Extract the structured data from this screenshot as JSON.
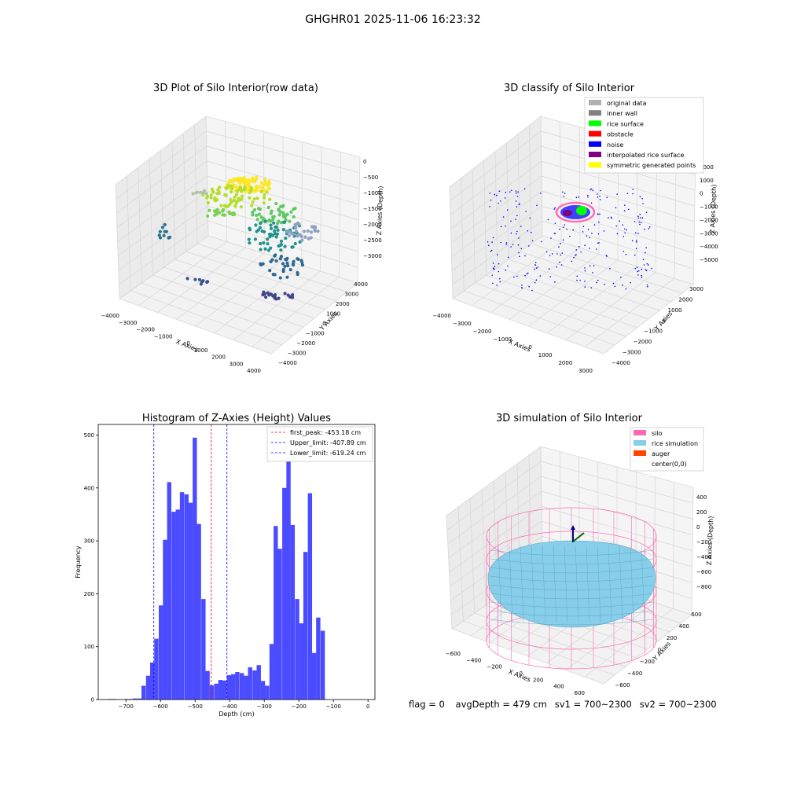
{
  "figure": {
    "suptitle": "GHGHR01 2025-11-06 16:23:32",
    "footer": {
      "flag": "flag = 0",
      "avg_depth": "avgDepth = 479 cm",
      "sv1": "sv1 = 700~2300",
      "sv2": "sv2 = 700~2300"
    }
  },
  "chart_data": [
    {
      "type": "scatter",
      "projection": "3d",
      "title": "3D Plot of Silo Interior(row data)",
      "xlabel": "X Axies",
      "ylabel": "Y Axies",
      "zlabel": "Z Axies (Depth)",
      "xticks": [
        "−4000",
        "−3000",
        "−2000",
        "−1000",
        "0",
        "1000",
        "2000",
        "3000",
        "4000"
      ],
      "yticks": [
        "−4000",
        "−3000",
        "−2000",
        "−1000",
        "0",
        "1000",
        "2000",
        "3000",
        "4000"
      ],
      "zticks": [
        "0",
        "−500",
        "−1000",
        "−1500",
        "−2000",
        "−2500",
        "−3000"
      ],
      "colormap": "viridis",
      "colors": {
        "low": "#440154",
        "mid": "#21918c",
        "high": "#fde725"
      }
    },
    {
      "type": "scatter",
      "projection": "3d",
      "title": "3D classify of Silo Interior",
      "xlabel": "X Axies",
      "ylabel": "Y Axies",
      "zlabel": "Z Axies (Depth)",
      "xticks": [
        "−4000",
        "−3000",
        "−2000",
        "−1000",
        "0",
        "1000",
        "2000",
        "3000"
      ],
      "yticks": [
        "−4000",
        "−3000",
        "−2000",
        "−1000",
        "0",
        "1000",
        "2000",
        "3000"
      ],
      "zticks": [
        "2000",
        "1000",
        "0",
        "−1000",
        "−2000",
        "−3000",
        "−4000",
        "−5000"
      ],
      "legend": [
        {
          "label": "original data",
          "color": "#b0b0b0"
        },
        {
          "label": "inner wall",
          "color": "#808080"
        },
        {
          "label": "rice surface",
          "color": "#00ff00"
        },
        {
          "label": "obstacle",
          "color": "#ff0000"
        },
        {
          "label": "noise",
          "color": "#0000ff"
        },
        {
          "label": "interpolated rice surface",
          "color": "#800080"
        },
        {
          "label": "symmetric generated points",
          "color": "#ffff00"
        }
      ],
      "legend_position": "top-right"
    },
    {
      "type": "bar",
      "title": "Histogram of Z-Axies (Height) Values",
      "xlabel": "Depth (cm)",
      "ylabel": "Frequency",
      "xlim": [
        -780,
        20
      ],
      "ylim": [
        0,
        520
      ],
      "xticks": [
        -700,
        -600,
        -500,
        -400,
        -300,
        -200,
        -100,
        0
      ],
      "yticks": [
        0,
        100,
        200,
        300,
        400,
        500
      ],
      "bin_width": 12.3,
      "bin_start": [
        -753,
        -740,
        -704,
        -691,
        -680,
        -667,
        -655,
        -642,
        -630,
        -618,
        -605,
        -593,
        -581,
        -568,
        -556,
        -544,
        -531,
        -519,
        -507,
        -495,
        -482,
        -470,
        -458,
        -445,
        -433,
        -421,
        -408,
        -396,
        -384,
        -371,
        -359,
        -347,
        -334,
        -322,
        -310,
        -298,
        -285,
        -273,
        -261,
        -248,
        -236,
        -224,
        -211,
        -199,
        -187,
        -174,
        -162,
        -150,
        -137,
        -125,
        -113,
        -101,
        -88,
        -76,
        -64,
        -51,
        -39,
        -27,
        -14
      ],
      "values": [
        1,
        1,
        1,
        1,
        2,
        2,
        26,
        45,
        70,
        115,
        178,
        302,
        411,
        355,
        359,
        392,
        388,
        372,
        495,
        332,
        190,
        54,
        27,
        30,
        37,
        36,
        46,
        48,
        52,
        50,
        45,
        61,
        55,
        65,
        35,
        26,
        105,
        328,
        285,
        400,
        488,
        330,
        190,
        144,
        279,
        390,
        88,
        155,
        130,
        0,
        0,
        0,
        0,
        0,
        0,
        0,
        0,
        0,
        0
      ],
      "bar_color": "#4b4bff",
      "vlines": [
        {
          "label": "first_peak: -453.18 cm",
          "x": -453.18,
          "color": "#ff0000"
        },
        {
          "label": "Upper_limit: -407.89 cm",
          "x": -407.89,
          "color": "#0000ff"
        },
        {
          "label": "Lower_limit: -619.24 cm",
          "x": -619.24,
          "color": "#0000ff"
        }
      ],
      "legend_position": "top-right"
    },
    {
      "type": "surface",
      "projection": "3d",
      "title": "3D simulation of Silo Interior",
      "xlabel": "X Axies",
      "ylabel": "Y Axies",
      "zlabel": "Z Axies (Depth)",
      "xticks": [
        "−600",
        "−400",
        "−200",
        "0",
        "200",
        "400",
        "600"
      ],
      "yticks": [
        "−600",
        "−400",
        "−200",
        "0",
        "200",
        "400",
        "600"
      ],
      "zticks": [
        "400",
        "200",
        "0",
        "−200",
        "−400",
        "−600",
        "−800"
      ],
      "legend": [
        {
          "label": "silo",
          "color": "#ff69b4"
        },
        {
          "label": "rice simulation",
          "color": "#87ceeb"
        },
        {
          "label": "auger",
          "color": "#ff4500"
        },
        {
          "label": "center(0,0)",
          "color": "none"
        }
      ],
      "legend_position": "top-right"
    }
  ]
}
